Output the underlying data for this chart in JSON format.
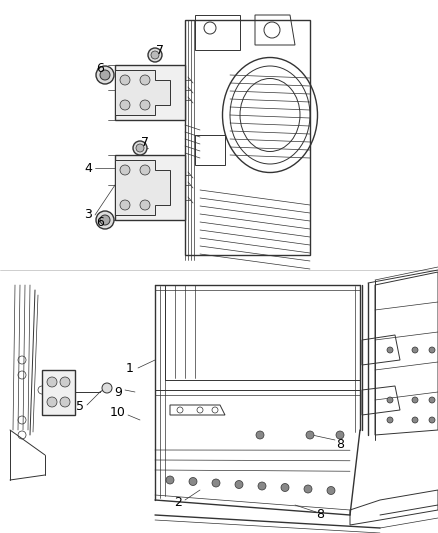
{
  "background_color": "#ffffff",
  "line_color": "#333333",
  "label_color": "#000000",
  "figsize": [
    4.38,
    5.33
  ],
  "dpi": 100,
  "lw_main": 1.0,
  "lw_thin": 0.5,
  "lw_med": 0.7
}
